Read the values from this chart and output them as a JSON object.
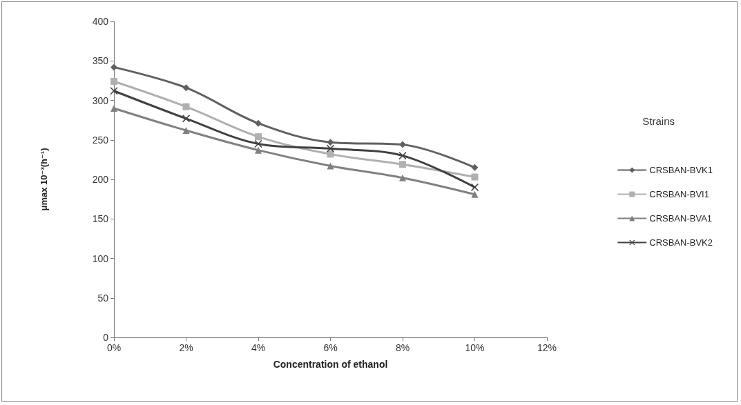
{
  "chart_data": {
    "type": "line",
    "xlabel": "Concentration of ethanol",
    "ylabel": "μmax 10⁻³(h⁻¹)",
    "legend_title": "Strains",
    "legend": "right",
    "grid": false,
    "line_style": "solid",
    "x": [
      0,
      2,
      4,
      6,
      8,
      10
    ],
    "xlim": [
      0,
      12
    ],
    "xticks": [
      {
        "value": 0,
        "label": "0%"
      },
      {
        "value": 2,
        "label": "2%"
      },
      {
        "value": 4,
        "label": "4%"
      },
      {
        "value": 6,
        "label": "6%"
      },
      {
        "value": 8,
        "label": "8%"
      },
      {
        "value": 10,
        "label": "10%"
      },
      {
        "value": 12,
        "label": "12%"
      }
    ],
    "ylim": [
      0,
      400
    ],
    "yticks": [
      0,
      50,
      100,
      150,
      200,
      250,
      300,
      350,
      400
    ],
    "series": [
      {
        "name": "CRSBAN-BVK1",
        "color": "#606060",
        "marker": "diamond",
        "values": [
          342,
          316,
          271,
          247,
          244,
          215
        ]
      },
      {
        "name": "CRSBAN-BVI1",
        "color": "#b0b0b0",
        "marker": "square",
        "values": [
          324,
          292,
          254,
          232,
          219,
          203
        ]
      },
      {
        "name": "CRSBAN-BVA1",
        "color": "#808080",
        "marker": "triangle",
        "values": [
          290,
          262,
          237,
          217,
          202,
          181
        ]
      },
      {
        "name": "CRSBAN-BVK2",
        "color": "#404040",
        "marker": "cross",
        "values": [
          312,
          277,
          245,
          239,
          230,
          190
        ]
      }
    ]
  }
}
